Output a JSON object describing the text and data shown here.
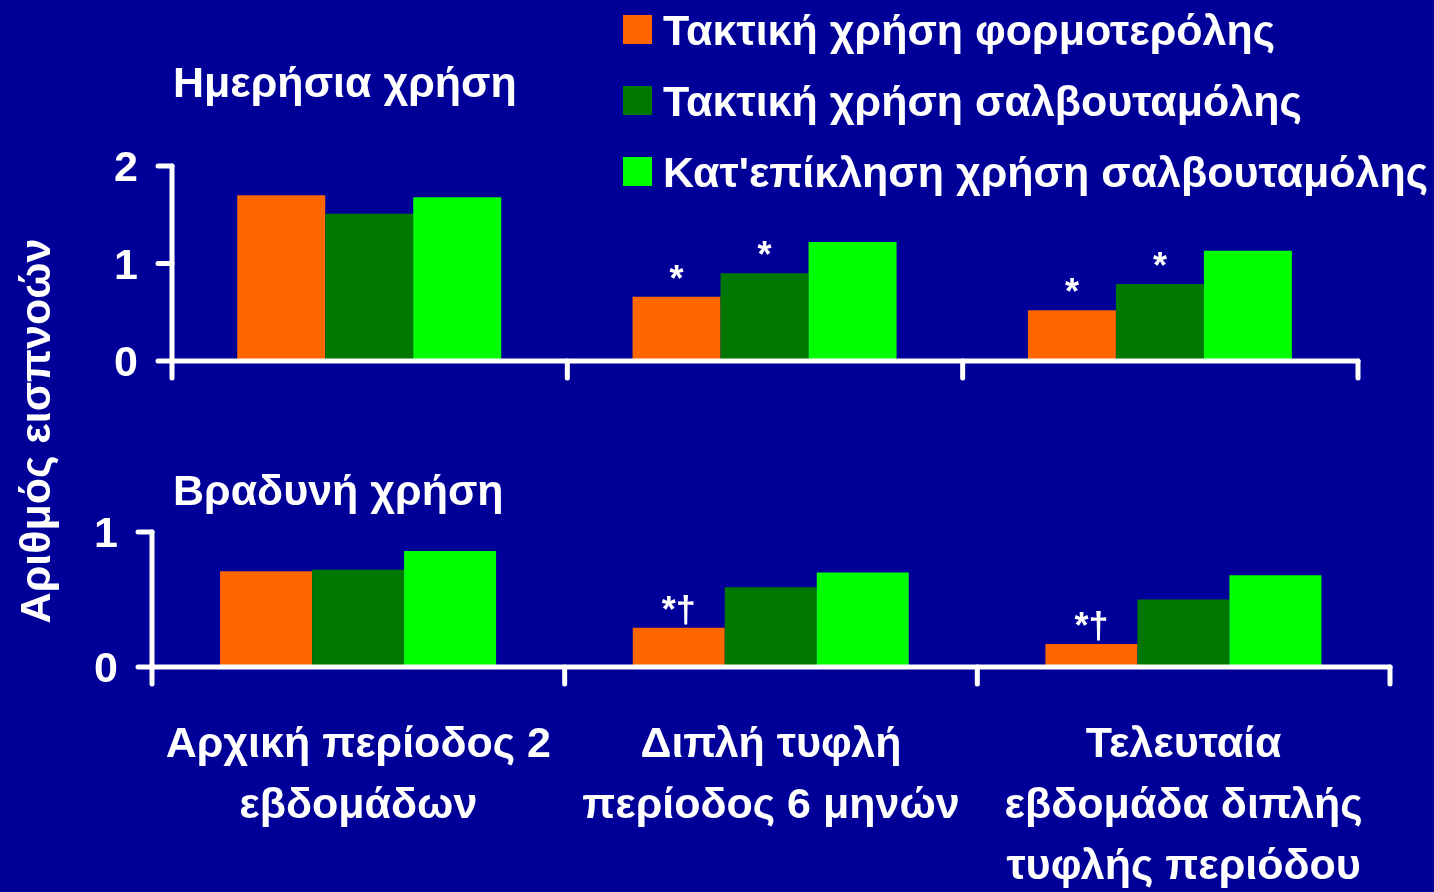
{
  "chart_data": [
    {
      "type": "bar",
      "title": "Ημερήσια χρήση",
      "ylabel": "Αριθμός εισπνοών",
      "categories": [
        "Αρχική περίοδος 2 εβδομάδων",
        "Διπλή τυφλή περίοδος 6 μηνών",
        "Τελευταία εβδομάδα διπλής τυφλής περιόδου"
      ],
      "series": [
        {
          "name": "Τακτική χρήση φορμοτερόλης",
          "color": "#ff6600",
          "values": [
            1.7,
            0.66,
            0.52
          ]
        },
        {
          "name": "Τακτική χρήση σαλβουταμόλης",
          "color": "#007700",
          "values": [
            1.51,
            0.9,
            0.79
          ]
        },
        {
          "name": "Κατ'επίκληση χρήση σαλβουταμόλης",
          "color": "#00ff00",
          "values": [
            1.68,
            1.22,
            1.13
          ]
        }
      ],
      "ylim": [
        0,
        2
      ],
      "yticks": [
        0,
        1,
        2
      ],
      "legend": "top right",
      "tick_labels": "y",
      "annotations": [
        "*",
        {
          "text": "*",
          "x": "Διπλή τυφλή περίοδος 6 μηνών",
          "y": 0.9
        },
        "*",
        {
          "text": "*",
          "x": "Τελευταία εβδομάδα διπλής τυφλής περιόδου",
          "y": 0.79
        }
      ]
    },
    {
      "type": "bar",
      "title": "Βραδυνή χρήση",
      "categories": [
        "Αρχική περίοδος 2 εβδομάδων",
        "Διπλή τυφλή περίοδος 6 μηνών",
        "Τελευταία εβδομάδα διπλής τυφλής περιόδου"
      ],
      "series": [
        {
          "color": "#ff6600",
          "values": [
            0.71,
            0.29,
            0.17
          ]
        },
        {
          "color": "#007700",
          "values": [
            0.72,
            0.59,
            0.5
          ]
        },
        {
          "color": "#00ff00",
          "values": [
            0.86,
            0.7,
            0.68
          ]
        }
      ],
      "ylim": [
        0,
        1
      ],
      "yticks": [
        0,
        1
      ],
      "annotations": [
        "*†",
        "*†"
      ]
    }
  ]
}
